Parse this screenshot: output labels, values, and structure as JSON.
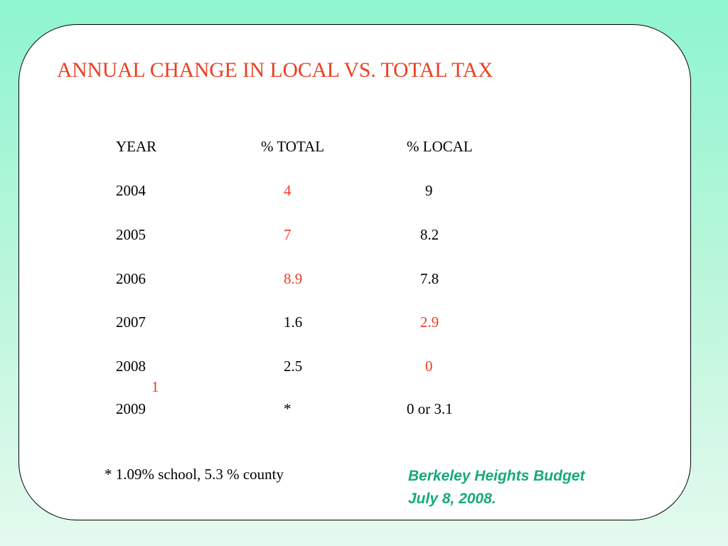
{
  "title": "ANNUAL CHANGE IN LOCAL VS. TOTAL TAX",
  "table": {
    "headers": [
      "YEAR",
      "% TOTAL",
      "% LOCAL"
    ],
    "rows": [
      {
        "year": "2004",
        "total": "4",
        "local": "9"
      },
      {
        "year": "2005",
        "total": "7",
        "local": "8.2"
      },
      {
        "year": "2006",
        "total": "8.9",
        "local": "7.8"
      },
      {
        "year": "2007",
        "total": "1.6",
        "local": "2.9"
      },
      {
        "year": "2008",
        "total": "2.5",
        "local": "0"
      },
      {
        "year": "2009",
        "total": "*",
        "local": "0 or 3.1"
      }
    ],
    "stray_mark": "1"
  },
  "footnote": "*  1.09% school,  5.3 % county",
  "credit": {
    "line1": "Berkeley Heights Budget",
    "line2": "July 8, 2008."
  },
  "colors": {
    "accent": "#ee3d1f",
    "credit": "#17a97d",
    "background_top": "#8ef5cf",
    "background_bottom": "#e4faee"
  }
}
